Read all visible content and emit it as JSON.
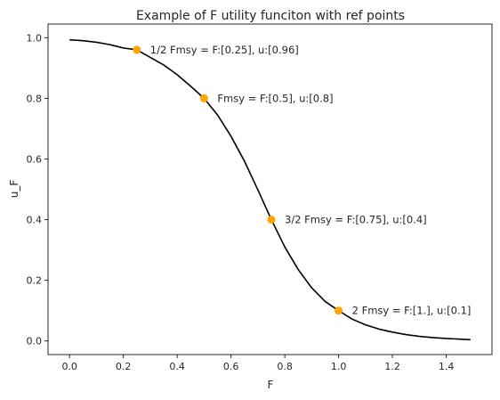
{
  "chart_data": {
    "type": "line",
    "title": "Example of F utility funciton with ref points",
    "xlabel": "F",
    "ylabel": "u_F",
    "xlim": [
      -0.08,
      1.57
    ],
    "ylim": [
      -0.045,
      1.045
    ],
    "x_ticks": [
      0.0,
      0.2,
      0.4,
      0.6,
      0.8,
      1.0,
      1.2,
      1.4
    ],
    "x_tick_labels": [
      "0.0",
      "0.2",
      "0.4",
      "0.6",
      "0.8",
      "1.0",
      "1.2",
      "1.4"
    ],
    "y_ticks": [
      0.0,
      0.2,
      0.4,
      0.6,
      0.8,
      1.0
    ],
    "y_tick_labels": [
      "0.0",
      "0.2",
      "0.4",
      "0.6",
      "0.8",
      "1.0"
    ],
    "grid": false,
    "series": [
      {
        "color": "#000000",
        "x": [
          0.0,
          0.05,
          0.1,
          0.15,
          0.2,
          0.25,
          0.3,
          0.35,
          0.4,
          0.45,
          0.5,
          0.55,
          0.6,
          0.65,
          0.7,
          0.75,
          0.8,
          0.85,
          0.9,
          0.95,
          1.0,
          1.05,
          1.1,
          1.15,
          1.2,
          1.25,
          1.3,
          1.35,
          1.4,
          1.45,
          1.49
        ],
        "y": [
          0.993,
          0.99,
          0.985,
          0.977,
          0.966,
          0.96,
          0.935,
          0.91,
          0.878,
          0.84,
          0.8,
          0.745,
          0.675,
          0.593,
          0.498,
          0.4,
          0.31,
          0.235,
          0.175,
          0.13,
          0.1,
          0.072,
          0.053,
          0.039,
          0.029,
          0.021,
          0.015,
          0.011,
          0.008,
          0.006,
          0.004
        ]
      }
    ],
    "points": {
      "color": "#ffa500",
      "items": [
        {
          "x": 0.25,
          "y": 0.96,
          "label": "1/2 Fmsy = F:[0.25], u:[0.96]"
        },
        {
          "x": 0.5,
          "y": 0.8,
          "label": "Fmsy = F:[0.5], u:[0.8]"
        },
        {
          "x": 0.75,
          "y": 0.4,
          "label": "3/2 Fmsy = F:[0.75], u:[0.4]"
        },
        {
          "x": 1.0,
          "y": 0.1,
          "label": "2 Fmsy = F:[1.], u:[0.1]"
        }
      ]
    }
  }
}
